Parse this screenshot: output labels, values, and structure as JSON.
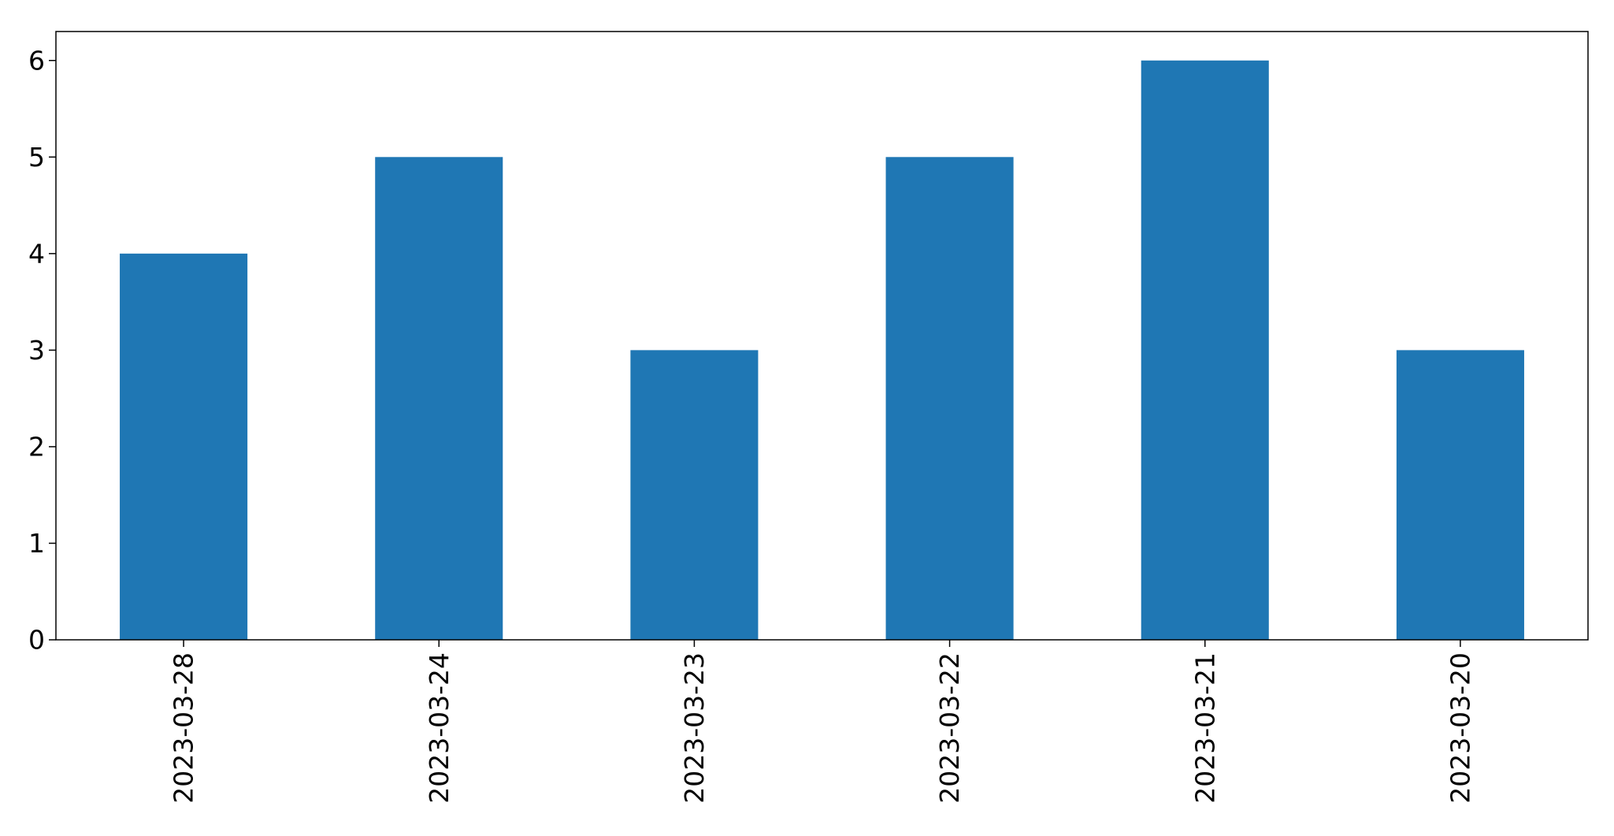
{
  "chart_data": {
    "type": "bar",
    "title": "",
    "xlabel": "",
    "ylabel": "",
    "categories": [
      "2023-03-28",
      "2023-03-24",
      "2023-03-23",
      "2023-03-22",
      "2023-03-21",
      "2023-03-20"
    ],
    "values": [
      4,
      5,
      3,
      5,
      6,
      3
    ],
    "ylim": [
      0,
      6.3
    ],
    "yticks": [
      0,
      1,
      2,
      3,
      4,
      5,
      6
    ],
    "grid": false,
    "legend": "none",
    "bar_color": "#1f77b4",
    "xtick_rotation": "vertical"
  }
}
